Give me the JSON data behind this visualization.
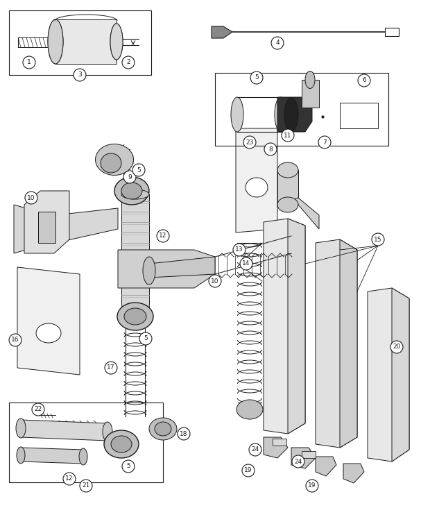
{
  "bg_color": "#ffffff",
  "line_color": "#1a1a1a",
  "fig_width": 6.2,
  "fig_height": 7.32,
  "dpi": 100
}
